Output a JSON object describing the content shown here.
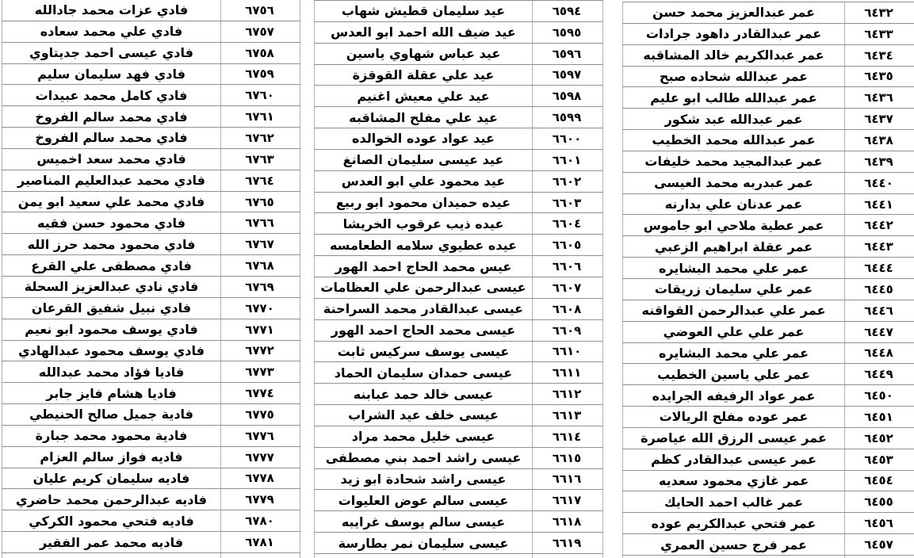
{
  "document": {
    "type": "name-register-table",
    "direction": "rtl",
    "colors": {
      "background": "#ffffff",
      "text": "#000000",
      "horizontal_border": "#8f8f8f",
      "vertical_border": "#b3b3b3"
    },
    "groups": [
      {
        "id": "serials-6432-6457",
        "position": "right",
        "rows": [
          {
            "serial": "٦٤٣٢",
            "name": "عمر عبدالعزيز محمد حسن"
          },
          {
            "serial": "٦٤٣٣",
            "name": "عمر عبدالقادر داهود جرادات"
          },
          {
            "serial": "٦٤٣٤",
            "name": "عمر عبدالكريم خالد المشاقبه"
          },
          {
            "serial": "٦٤٣٥",
            "name": "عمر عبدالله شحاده صبح"
          },
          {
            "serial": "٦٤٣٦",
            "name": "عمر عبدالله طالب ابو عليم"
          },
          {
            "serial": "٦٤٣٧",
            "name": "عمر عبدالله عبد شكور"
          },
          {
            "serial": "٦٤٣٨",
            "name": "عمر عبدالله محمد الخطيب"
          },
          {
            "serial": "٦٤٣٩",
            "name": "عمر عبدالمجيد محمد خليفات"
          },
          {
            "serial": "٦٤٤٠",
            "name": "عمر عبدربه محمد العيسى"
          },
          {
            "serial": "٦٤٤١",
            "name": "عمر عدنان علي بدارنه"
          },
          {
            "serial": "٦٤٤٢",
            "name": "عمر عطية ملاحي ابو جاموس"
          },
          {
            "serial": "٦٤٤٣",
            "name": "عمر عقلة ابراهيم الزعبي"
          },
          {
            "serial": "٦٤٤٤",
            "name": "عمر علي محمد البشايره"
          },
          {
            "serial": "٦٤٤٥",
            "name": "عمر علي سليمان زريقات"
          },
          {
            "serial": "٦٤٤٦",
            "name": "عمر علي عبدالرحمن القواقنه"
          },
          {
            "serial": "٦٤٤٧",
            "name": "عمر علي علي العوضي"
          },
          {
            "serial": "٦٤٤٨",
            "name": "عمر علي محمد البشايره"
          },
          {
            "serial": "٦٤٤٩",
            "name": "عمر علي ياسين الخطيب"
          },
          {
            "serial": "٦٤٥٠",
            "name": "عمر عواد الرفيفه الجرايده"
          },
          {
            "serial": "٦٤٥١",
            "name": "عمر عوده مفلح الريالات"
          },
          {
            "serial": "٦٤٥٢",
            "name": "عمر عيسى الرزق الله عياصرة"
          },
          {
            "serial": "٦٤٥٣",
            "name": "عمر عيسى عبدالقادر كظم"
          },
          {
            "serial": "٦٤٥٤",
            "name": "عمر غازي محمود سعديه"
          },
          {
            "serial": "٦٤٥٥",
            "name": "عمر غالب احمد الحايك"
          },
          {
            "serial": "٦٤٥٦",
            "name": "عمر فتحي عبدالكريم عوده"
          },
          {
            "serial": "٦٤٥٧",
            "name": "عمر فرج حسين العمري"
          }
        ]
      },
      {
        "id": "serials-6594-6619",
        "position": "middle",
        "rows": [
          {
            "serial": "٦٥٩٤",
            "name": "عيد سليمان قطيش شهاب"
          },
          {
            "serial": "٦٥٩٥",
            "name": "عيد ضيف الله احمد ابو العدس"
          },
          {
            "serial": "٦٥٩٦",
            "name": "عيد عباس شهاوي ياسين"
          },
          {
            "serial": "٦٥٩٧",
            "name": "عيد علي عقلة القوقزة"
          },
          {
            "serial": "٦٥٩٨",
            "name": "عيد علي معيش اغنيم"
          },
          {
            "serial": "٦٥٩٩",
            "name": "عيد علي مفلح المشاقبه"
          },
          {
            "serial": "٦٦٠٠",
            "name": "عيد عواد عوده الخوالده"
          },
          {
            "serial": "٦٦٠١",
            "name": "عيد عيسى سليمان الصانغ"
          },
          {
            "serial": "٦٦٠٢",
            "name": "عيد محمود علي ابو العدس"
          },
          {
            "serial": "٦٦٠٣",
            "name": "عيده حميدان محمود ابو ربيع"
          },
          {
            "serial": "٦٦٠٤",
            "name": "عيده ذيب عرقوب الخريشا"
          },
          {
            "serial": "٦٦٠٥",
            "name": "عيده عطيوي سلامه الطعامسه"
          },
          {
            "serial": "٦٦٠٦",
            "name": "عيس محمد الحاج احمد الهور"
          },
          {
            "serial": "٦٦٠٧",
            "name": "عيسى عبدالرحمن علي العظامات"
          },
          {
            "serial": "٦٦٠٨",
            "name": "عيسى عبدالقادر محمد السراحنة"
          },
          {
            "serial": "٦٦٠٩",
            "name": "عيسى محمد الحاج احمد الهور"
          },
          {
            "serial": "٦٦١٠",
            "name": "عيسى يوسف سركيس ثابت"
          },
          {
            "serial": "٦٦١١",
            "name": "عيسى حمدان سليمان الحماد"
          },
          {
            "serial": "٦٦١٢",
            "name": "عيسى خالد حمد عبابنه"
          },
          {
            "serial": "٦٦١٣",
            "name": "عيسى خلف عيد الشراب"
          },
          {
            "serial": "٦٦١٤",
            "name": "عيسى خليل محمد مراد"
          },
          {
            "serial": "٦٦١٥",
            "name": "عيسى راشد احمد بني مصطفى"
          },
          {
            "serial": "٦٦١٦",
            "name": "عيسى راشد شحادة ابو زيد"
          },
          {
            "serial": "٦٦١٧",
            "name": "عيسى سالم عوض العليوات"
          },
          {
            "serial": "٦٦١٨",
            "name": "عيسى سالم يوسف غرايبه"
          },
          {
            "serial": "٦٦١٩",
            "name": "عيسى سليمان نمر بطارسة"
          }
        ]
      },
      {
        "id": "serials-6756-6781",
        "position": "left",
        "rows": [
          {
            "serial": "٦٧٥٦",
            "name": "فادي عزات محمد جادالله"
          },
          {
            "serial": "٦٧٥٧",
            "name": "فادي علي محمد سعاده"
          },
          {
            "serial": "٦٧٥٨",
            "name": "فادي عيسى احمد جديتاوي"
          },
          {
            "serial": "٦٧٥٩",
            "name": "فادي فهد سليمان سليم"
          },
          {
            "serial": "٦٧٦٠",
            "name": "فادي كامل محمد عبيدات"
          },
          {
            "serial": "٦٧٦١",
            "name": "فادي محمد سالم الفروخ"
          },
          {
            "serial": "٦٧٦٢",
            "name": "فادي محمد سالم الفروخ"
          },
          {
            "serial": "٦٧٦٣",
            "name": "فادي محمد سعد اخميس"
          },
          {
            "serial": "٦٧٦٤",
            "name": "فادي محمد عبدالعليم المناصير"
          },
          {
            "serial": "٦٧٦٥",
            "name": "فادي محمد علي سعيد ابو يمن"
          },
          {
            "serial": "٦٧٦٦",
            "name": "فادي محمود حسن فقيه"
          },
          {
            "serial": "٦٧٦٧",
            "name": "فادي محمود محمد حرز الله"
          },
          {
            "serial": "٦٧٦٨",
            "name": "فادي مصطفى علي القرع"
          },
          {
            "serial": "٦٧٦٩",
            "name": "فادي نادي عبدالعزيز السحلة"
          },
          {
            "serial": "٦٧٧٠",
            "name": "فادي نبيل شفيق القرعان"
          },
          {
            "serial": "٦٧٧١",
            "name": "فادي يوسف محمود ابو نعيم"
          },
          {
            "serial": "٦٧٧٢",
            "name": "فادي يوسف محمود عبدالهادي"
          },
          {
            "serial": "٦٧٧٣",
            "name": "فاديا فؤاد محمد عبدالله"
          },
          {
            "serial": "٦٧٧٤",
            "name": "فاديا هشام فايز جابر"
          },
          {
            "serial": "٦٧٧٥",
            "name": "فادية جميل صالح الحنيطي"
          },
          {
            "serial": "٦٧٧٦",
            "name": "فادية محمود محمد جبارة"
          },
          {
            "serial": "٦٧٧٧",
            "name": "فاديه فواز سالم العزام"
          },
          {
            "serial": "٦٧٧٨",
            "name": "فاديه سليمان كريم عليان"
          },
          {
            "serial": "٦٧٧٩",
            "name": "فاديه عبدالرحمن محمد حاضري"
          },
          {
            "serial": "٦٧٨٠",
            "name": "فاديه فتحي محمود الكركي"
          },
          {
            "serial": "٦٧٨١",
            "name": "فاديه محمد عمر الفقير"
          }
        ]
      }
    ]
  }
}
